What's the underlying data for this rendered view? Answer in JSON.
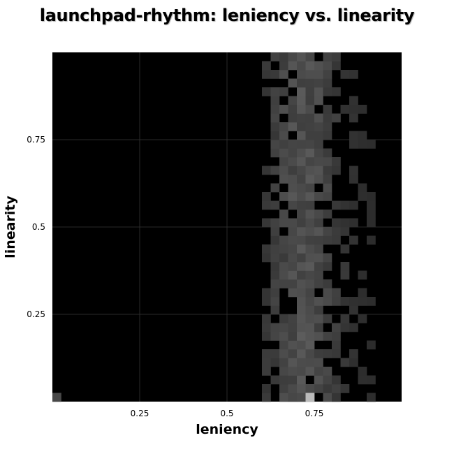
{
  "chart_data": {
    "type": "heatmap",
    "title": "launchpad-rhythm: leniency vs. linearity",
    "xlabel": "leniency",
    "ylabel": "linearity",
    "xlim": [
      0,
      1
    ],
    "ylim": [
      0,
      1
    ],
    "grid": true,
    "bins": 40,
    "background_color": "#000000",
    "cell_color_low": "#222222",
    "cell_color_high": "#bbbbbb",
    "x_ticks": [
      {
        "value": 0.25,
        "label": "0.25"
      },
      {
        "value": 0.5,
        "label": "0.5"
      },
      {
        "value": 0.75,
        "label": "0.75"
      }
    ],
    "y_ticks": [
      {
        "value": 0.25,
        "label": "0.25"
      },
      {
        "value": 0.5,
        "label": "0.5"
      },
      {
        "value": 0.75,
        "label": "0.75"
      }
    ],
    "density_profile": {
      "x_range": [
        0.59,
        0.92
      ],
      "x_peak": 0.72,
      "y_range": [
        0.0,
        1.0
      ],
      "peak_cell": {
        "x": 0.7375,
        "y": 0.0125
      },
      "outlier_cell": {
        "x": 0.0125,
        "y": 0.0125
      }
    }
  }
}
